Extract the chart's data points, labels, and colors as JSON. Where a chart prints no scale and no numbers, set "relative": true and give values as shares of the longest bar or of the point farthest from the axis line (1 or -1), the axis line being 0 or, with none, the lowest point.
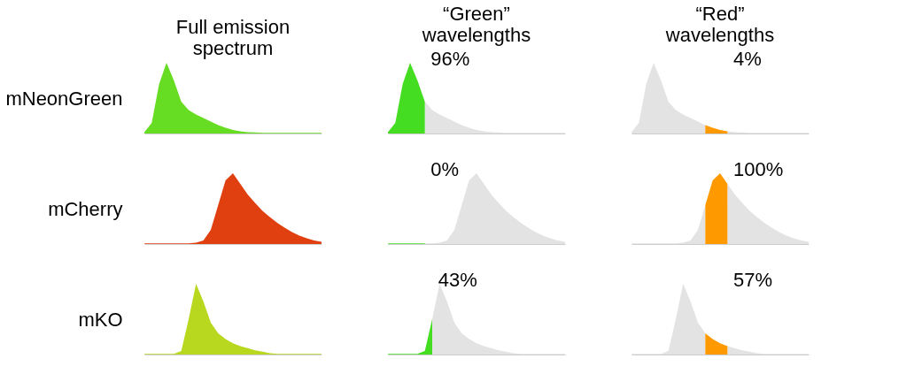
{
  "chart_data": [
    {
      "type": "area",
      "relative": true,
      "tick_labels": false,
      "title": "Full emission spectrum",
      "ylabel": "mNeonGreen",
      "categories": [
        null,
        null,
        null,
        null,
        null,
        null,
        null,
        null,
        null,
        null,
        null,
        null,
        null,
        null,
        null,
        null,
        null,
        null,
        null,
        null,
        null,
        null,
        null,
        null,
        null
      ],
      "series": [
        {
          "color": "#66dd22",
          "values": [
            0.02,
            0.15,
            0.7,
            1.0,
            0.75,
            0.45,
            0.33,
            0.27,
            0.22,
            0.17,
            0.12,
            0.08,
            0.05,
            0.03,
            0.02,
            0.015,
            0.01,
            0.01,
            0.01,
            0.01,
            0.01,
            0.01,
            0.01,
            0.01,
            0.01
          ]
        }
      ]
    },
    {
      "type": "area",
      "relative": true,
      "tick_labels": false,
      "title": "“Green” wavelengths",
      "categories": [
        null,
        null,
        null,
        null,
        null,
        null,
        null,
        null,
        null,
        null,
        null,
        null,
        null,
        null,
        null,
        null,
        null,
        null,
        null,
        null,
        null,
        null,
        null,
        null,
        null
      ],
      "series": [
        {
          "color": "#e3e3e3",
          "values": [
            null,
            null,
            null,
            null,
            null,
            0.45,
            0.33,
            0.27,
            0.22,
            0.17,
            0.12,
            0.08,
            0.05,
            0.03,
            0.02,
            0.015,
            0.01,
            0.01,
            0.01,
            0.01,
            0.01,
            0.01,
            0.01,
            0.01,
            0.01
          ]
        },
        {
          "color": "#44dd22",
          "values": [
            0.02,
            0.15,
            0.7,
            1.0,
            0.75,
            0.45,
            null,
            null,
            null,
            null,
            null,
            null,
            null,
            null,
            null,
            null,
            null,
            null,
            null,
            null,
            null,
            null,
            null,
            null,
            null
          ]
        }
      ],
      "annotations": [
        "96%"
      ]
    },
    {
      "type": "area",
      "relative": true,
      "tick_labels": false,
      "title": "“Red” wavelengths",
      "categories": [
        null,
        null,
        null,
        null,
        null,
        null,
        null,
        null,
        null,
        null,
        null,
        null,
        null,
        null,
        null,
        null,
        null,
        null,
        null,
        null,
        null,
        null,
        null,
        null,
        null
      ],
      "series": [
        {
          "color": "#e3e3e3",
          "values": [
            0.02,
            0.15,
            0.7,
            1.0,
            0.75,
            0.45,
            0.33,
            0.27,
            0.22,
            0.17,
            0.12,
            null,
            null,
            0.03,
            0.02,
            0.015,
            0.01,
            0.01,
            0.01,
            0.01,
            0.01,
            0.01,
            0.01,
            0.01,
            0.01
          ]
        },
        {
          "color": "#ff9900",
          "values": [
            null,
            null,
            null,
            null,
            null,
            null,
            null,
            null,
            null,
            null,
            0.12,
            0.08,
            0.05,
            0.03,
            null,
            null,
            null,
            null,
            null,
            null,
            null,
            null,
            null,
            null,
            null
          ]
        }
      ],
      "annotations": [
        "4%"
      ]
    },
    {
      "type": "area",
      "relative": true,
      "tick_labels": false,
      "ylabel": "mCherry",
      "categories": [
        null,
        null,
        null,
        null,
        null,
        null,
        null,
        null,
        null,
        null,
        null,
        null,
        null,
        null,
        null,
        null,
        null,
        null,
        null,
        null,
        null,
        null,
        null,
        null,
        null
      ],
      "series": [
        {
          "color": "#e04010",
          "values": [
            0.01,
            0.01,
            0.01,
            0.01,
            0.01,
            0.01,
            0.01,
            0.02,
            0.05,
            0.2,
            0.55,
            0.9,
            1.0,
            0.85,
            0.7,
            0.58,
            0.47,
            0.38,
            0.3,
            0.23,
            0.17,
            0.12,
            0.08,
            0.05,
            0.03
          ]
        }
      ]
    },
    {
      "type": "area",
      "relative": true,
      "tick_labels": false,
      "categories": [
        null,
        null,
        null,
        null,
        null,
        null,
        null,
        null,
        null,
        null,
        null,
        null,
        null,
        null,
        null,
        null,
        null,
        null,
        null,
        null,
        null,
        null,
        null,
        null,
        null
      ],
      "series": [
        {
          "color": "#e3e3e3",
          "values": [
            null,
            null,
            null,
            null,
            null,
            0.01,
            0.01,
            0.02,
            0.05,
            0.2,
            0.55,
            0.9,
            1.0,
            0.85,
            0.7,
            0.58,
            0.47,
            0.38,
            0.3,
            0.23,
            0.17,
            0.12,
            0.08,
            0.05,
            0.03
          ]
        },
        {
          "color": "#44dd22",
          "values": [
            0.01,
            0.01,
            0.01,
            0.01,
            0.01,
            0.01,
            null,
            null,
            null,
            null,
            null,
            null,
            null,
            null,
            null,
            null,
            null,
            null,
            null,
            null,
            null,
            null,
            null,
            null,
            null
          ]
        }
      ],
      "annotations": [
        "0%"
      ]
    },
    {
      "type": "area",
      "relative": true,
      "tick_labels": false,
      "categories": [
        null,
        null,
        null,
        null,
        null,
        null,
        null,
        null,
        null,
        null,
        null,
        null,
        null,
        null,
        null,
        null,
        null,
        null,
        null,
        null,
        null,
        null,
        null,
        null,
        null
      ],
      "series": [
        {
          "color": "#e3e3e3",
          "values": [
            0.01,
            0.01,
            0.01,
            0.01,
            0.01,
            0.01,
            0.01,
            0.02,
            0.05,
            0.2,
            0.55,
            null,
            null,
            0.85,
            0.7,
            0.58,
            0.47,
            0.38,
            0.3,
            0.23,
            0.17,
            0.12,
            0.08,
            0.05,
            0.03
          ]
        },
        {
          "color": "#ff9900",
          "values": [
            null,
            null,
            null,
            null,
            null,
            null,
            null,
            null,
            null,
            null,
            0.55,
            0.9,
            1.0,
            0.85,
            null,
            null,
            null,
            null,
            null,
            null,
            null,
            null,
            null,
            null,
            null
          ]
        }
      ],
      "annotations": [
        "100%"
      ]
    },
    {
      "type": "area",
      "relative": true,
      "tick_labels": false,
      "ylabel": "mKO",
      "categories": [
        null,
        null,
        null,
        null,
        null,
        null,
        null,
        null,
        null,
        null,
        null,
        null,
        null,
        null,
        null,
        null,
        null,
        null,
        null,
        null,
        null,
        null,
        null,
        null,
        null
      ],
      "series": [
        {
          "color": "#b8d820",
          "values": [
            0.01,
            0.01,
            0.01,
            0.01,
            0.01,
            0.05,
            0.5,
            1.0,
            0.75,
            0.45,
            0.3,
            0.22,
            0.16,
            0.12,
            0.09,
            0.06,
            0.04,
            0.02,
            0.01,
            0.01,
            0.01,
            0.01,
            0.01,
            0.01,
            0.01
          ]
        }
      ]
    },
    {
      "type": "area",
      "relative": true,
      "tick_labels": false,
      "categories": [
        null,
        null,
        null,
        null,
        null,
        null,
        null,
        null,
        null,
        null,
        null,
        null,
        null,
        null,
        null,
        null,
        null,
        null,
        null,
        null,
        null,
        null,
        null,
        null,
        null
      ],
      "series": [
        {
          "color": "#e3e3e3",
          "values": [
            null,
            null,
            null,
            null,
            null,
            null,
            0.5,
            1.0,
            0.75,
            0.45,
            0.3,
            0.22,
            0.16,
            0.12,
            0.09,
            0.06,
            0.04,
            0.02,
            0.01,
            0.01,
            0.01,
            0.01,
            0.01,
            0.01,
            0.01
          ]
        },
        {
          "color": "#44dd22",
          "values": [
            0.01,
            0.01,
            0.01,
            0.01,
            0.01,
            0.05,
            0.5,
            null,
            null,
            null,
            null,
            null,
            null,
            null,
            null,
            null,
            null,
            null,
            null,
            null,
            null,
            null,
            null,
            null,
            null
          ]
        }
      ],
      "annotations": [
        "43%"
      ]
    },
    {
      "type": "area",
      "relative": true,
      "tick_labels": false,
      "categories": [
        null,
        null,
        null,
        null,
        null,
        null,
        null,
        null,
        null,
        null,
        null,
        null,
        null,
        null,
        null,
        null,
        null,
        null,
        null,
        null,
        null,
        null,
        null,
        null,
        null
      ],
      "series": [
        {
          "color": "#e3e3e3",
          "values": [
            0.01,
            0.01,
            0.01,
            0.01,
            0.01,
            0.05,
            0.5,
            1.0,
            0.75,
            0.45,
            0.3,
            null,
            null,
            0.12,
            0.09,
            0.06,
            0.04,
            0.02,
            0.01,
            0.01,
            0.01,
            0.01,
            0.01,
            0.01,
            0.01
          ]
        },
        {
          "color": "#ff9900",
          "values": [
            null,
            null,
            null,
            null,
            null,
            null,
            null,
            null,
            null,
            null,
            0.3,
            0.22,
            0.16,
            0.12,
            null,
            null,
            null,
            null,
            null,
            null,
            null,
            null,
            null,
            null,
            null
          ]
        }
      ],
      "annotations": [
        "57%"
      ]
    }
  ]
}
